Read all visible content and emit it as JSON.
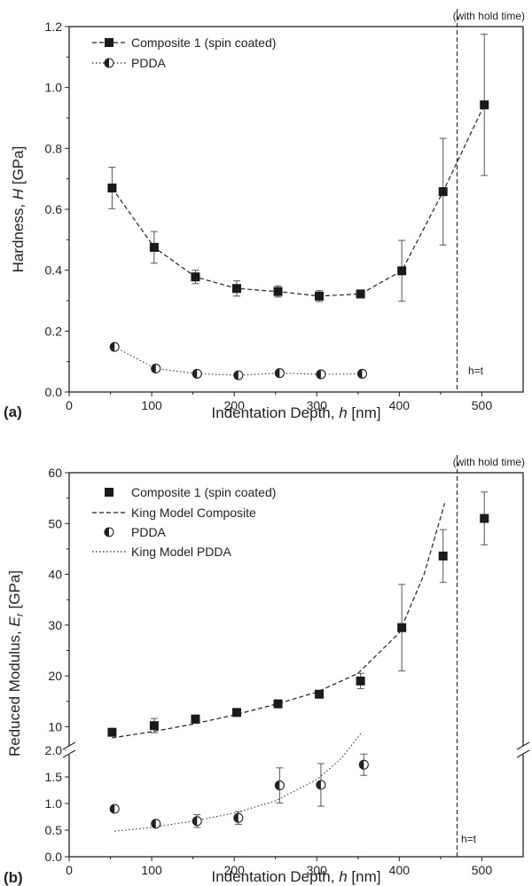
{
  "chart_data": [
    {
      "panel": "(a)",
      "type": "line",
      "annotation_top": "(with hold time)",
      "annotation_line": "h=t",
      "xlabel": "Indentation Depth, h [nm]",
      "ylabel": "Hardness, H [GPa]",
      "xlim": [
        0,
        550
      ],
      "ylim": [
        0,
        1.2
      ],
      "x_ticks": [
        "0",
        "100",
        "200",
        "300",
        "400",
        "500"
      ],
      "y_ticks": [
        "0.0",
        "0.2",
        "0.4",
        "0.6",
        "0.8",
        "1.0",
        "1.2"
      ],
      "vline_x": 470,
      "legend_position": "top-left",
      "series": [
        {
          "name": "Composite 1 (spin coated)",
          "marker": "filled-square",
          "line": "dashed",
          "x": [
            52,
            103,
            153,
            203,
            253,
            303,
            353,
            403,
            453,
            503
          ],
          "y": [
            0.67,
            0.475,
            0.378,
            0.34,
            0.33,
            0.315,
            0.322,
            0.398,
            0.658,
            0.943
          ],
          "err": [
            0.068,
            0.052,
            0.022,
            0.025,
            0.018,
            0.018,
            0.008,
            0.1,
            0.175,
            0.232
          ]
        },
        {
          "name": "PDDA",
          "marker": "half-filled-circle",
          "line": "dotted",
          "x": [
            55,
            105,
            155,
            205,
            255,
            305,
            355
          ],
          "y": [
            0.148,
            0.077,
            0.06,
            0.055,
            0.062,
            0.058,
            0.06
          ],
          "err": [
            0,
            0,
            0,
            0,
            0,
            0,
            0
          ]
        }
      ]
    },
    {
      "panel": "(b)",
      "type": "scatter",
      "annotation_top": "(with hold time)",
      "annotation_line": "h=t",
      "xlabel": "Indentation Depth, h [nm]",
      "ylabel": "Reduced Modulus, Er [GPa]",
      "xlim": [
        0,
        550
      ],
      "y_axis_break": "broken axis: lower 0.0-2.0, upper 5-60",
      "x_ticks": [
        "0",
        "100",
        "200",
        "300",
        "400",
        "500"
      ],
      "y_ticks_lower": [
        "0.0",
        "0.5",
        "1.0",
        "1.5",
        "2.0"
      ],
      "y_ticks_upper": [
        "10",
        "20",
        "30",
        "40",
        "50",
        "60"
      ],
      "vline_x": 470,
      "legend_position": "top-left",
      "series": [
        {
          "name": "Composite 1 (spin coated)",
          "marker": "filled-square",
          "x": [
            52,
            103,
            153,
            203,
            253,
            303,
            353,
            403,
            453,
            503
          ],
          "y": [
            8.9,
            10.2,
            11.5,
            12.8,
            14.5,
            16.4,
            19.0,
            29.5,
            43.6,
            51.0
          ],
          "err": [
            0.6,
            1.4,
            0.8,
            0.6,
            0.5,
            0.4,
            1.5,
            8.5,
            5.2,
            5.2
          ]
        },
        {
          "name": "King Model Composite",
          "line": "dashed",
          "x": [
            52,
            100,
            150,
            200,
            250,
            300,
            350,
            400,
            430,
            455
          ],
          "y": [
            7.8,
            9.0,
            10.5,
            12.3,
            14.4,
            16.8,
            20.5,
            28.5,
            40.0,
            54.0
          ]
        },
        {
          "name": "PDDA",
          "marker": "half-filled-circle",
          "x": [
            55,
            105,
            155,
            205,
            255,
            305,
            357
          ],
          "y": [
            0.9,
            0.62,
            0.67,
            0.73,
            1.34,
            1.35,
            1.73
          ],
          "err": [
            0.0,
            0.0,
            0.12,
            0.12,
            0.33,
            0.4,
            0.2
          ]
        },
        {
          "name": "King Model PDDA",
          "line": "dotted",
          "x": [
            55,
            100,
            150,
            200,
            250,
            300,
            330,
            355
          ],
          "y": [
            0.48,
            0.55,
            0.67,
            0.82,
            1.05,
            1.45,
            1.85,
            2.35
          ]
        }
      ]
    }
  ],
  "legend_a": {
    "s1": "Composite 1 (spin coated)",
    "s2": "PDDA"
  },
  "legend_b": {
    "s1": "Composite 1 (spin coated)",
    "s2": "King Model Composite",
    "s3": "PDDA",
    "s4": "King Model PDDA"
  }
}
